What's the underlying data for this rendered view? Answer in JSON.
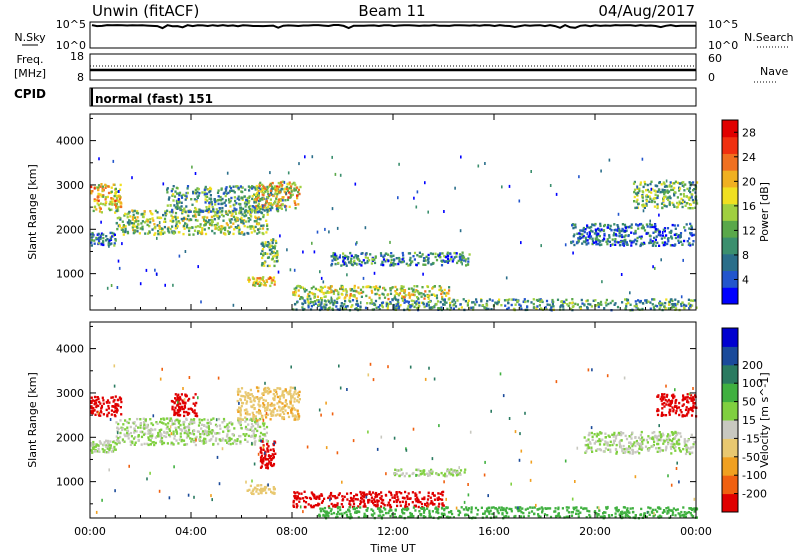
{
  "header": {
    "station_label": "Unwin (fitACF)",
    "beam_label": "Beam 11",
    "date_label": "04/Aug/2017"
  },
  "strips": {
    "nsky": {
      "label": "N.Sky",
      "right_label": "N.Search",
      "left_ticks": [
        "10^5",
        "10^0"
      ],
      "right_ticks": [
        "10^5",
        "10^0"
      ]
    },
    "freq": {
      "label_line1": "Freq.",
      "label_line2": "[MHz]",
      "right_label": "Nave",
      "left_ticks": [
        "18",
        "8"
      ],
      "right_ticks": [
        "60",
        "0"
      ]
    },
    "cpid": {
      "label": "CPID",
      "mode_text": "normal (fast) 151"
    }
  },
  "colors": {
    "power_scale": [
      "#0000ff",
      "#2255cc",
      "#2a6e8a",
      "#3b8f6e",
      "#5aa84a",
      "#a0d040",
      "#f0e020",
      "#f0b020",
      "#f07020",
      "#f03010",
      "#e00000"
    ],
    "velocity_scale": [
      "#e00000",
      "#f06010",
      "#f0a020",
      "#e8c870",
      "#c8c8c0",
      "#80d040",
      "#40b040",
      "#2a7a60",
      "#1a4a9a",
      "#0000d0"
    ]
  },
  "chart_data": [
    {
      "type": "heatmap",
      "name_hint": "power",
      "x_ticks": [
        "00:00",
        "04:00",
        "08:00",
        "12:00",
        "16:00",
        "20:00",
        "00:00"
      ],
      "x_range_hours": [
        0,
        24
      ],
      "y_ticks": [
        1000,
        2000,
        3000,
        4000
      ],
      "y_range": [
        180,
        4600
      ],
      "ylabel": "Slant Range [km]",
      "colorbar_label": "Power [dB]",
      "colorbar_ticks": [
        4,
        8,
        12,
        16,
        20,
        24,
        28
      ],
      "colorbar_range": [
        0,
        30
      ],
      "echo_regions": [
        {
          "t0": 0.0,
          "t1": 1.2,
          "r0": 2400,
          "r1": 3050,
          "v": 18
        },
        {
          "t0": 0.0,
          "t1": 1.0,
          "r0": 1650,
          "r1": 1950,
          "v": 8
        },
        {
          "t0": 1.0,
          "t1": 7.0,
          "r0": 1900,
          "r1": 2450,
          "v": 14
        },
        {
          "t0": 3.0,
          "t1": 7.6,
          "r0": 2400,
          "r1": 3000,
          "v": 10
        },
        {
          "t0": 6.5,
          "t1": 8.3,
          "r0": 2500,
          "r1": 3100,
          "v": 18
        },
        {
          "t0": 6.7,
          "t1": 7.4,
          "r0": 1200,
          "r1": 1800,
          "v": 12
        },
        {
          "t0": 6.2,
          "t1": 7.3,
          "r0": 750,
          "r1": 950,
          "v": 18
        },
        {
          "t0": 8.0,
          "t1": 14.2,
          "r0": 450,
          "r1": 750,
          "v": 16
        },
        {
          "t0": 9.5,
          "t1": 15.0,
          "r0": 1200,
          "r1": 1500,
          "v": 8
        },
        {
          "t0": 8.0,
          "t1": 24.0,
          "r0": 200,
          "r1": 450,
          "v": 10
        },
        {
          "t0": 19.0,
          "t1": 23.9,
          "r0": 1650,
          "r1": 2150,
          "v": 6
        },
        {
          "t0": 21.5,
          "t1": 24.0,
          "r0": 2500,
          "r1": 3100,
          "v": 12
        }
      ]
    },
    {
      "type": "heatmap",
      "name_hint": "velocity",
      "x_ticks": [
        "00:00",
        "04:00",
        "08:00",
        "12:00",
        "16:00",
        "20:00",
        "00:00"
      ],
      "x_range_hours": [
        0,
        24
      ],
      "xlabel": "Time UT",
      "y_ticks": [
        1000,
        2000,
        3000,
        4000
      ],
      "y_range": [
        180,
        4600
      ],
      "ylabel": "Slant Range [km]",
      "colorbar_label": "Velocity [m s^-1]",
      "colorbar_ticks": [
        -200,
        -100,
        -50,
        -15,
        15,
        50,
        100,
        200
      ],
      "echo_regions": [
        {
          "t0": 0.0,
          "t1": 1.2,
          "r0": 2500,
          "r1": 2950,
          "v": -250
        },
        {
          "t0": 0.0,
          "t1": 1.0,
          "r0": 1650,
          "r1": 1950,
          "v": 0
        },
        {
          "t0": 1.0,
          "t1": 7.0,
          "r0": 1850,
          "r1": 2450,
          "v": 0
        },
        {
          "t0": 3.2,
          "t1": 4.2,
          "r0": 2500,
          "r1": 3000,
          "v": -250
        },
        {
          "t0": 5.8,
          "t1": 8.3,
          "r0": 2400,
          "r1": 3150,
          "v": -40
        },
        {
          "t0": 6.7,
          "t1": 7.3,
          "r0": 1300,
          "r1": 1950,
          "v": -250
        },
        {
          "t0": 6.2,
          "t1": 7.3,
          "r0": 750,
          "r1": 950,
          "v": -30
        },
        {
          "t0": 8.0,
          "t1": 14.0,
          "r0": 450,
          "r1": 800,
          "v": -250
        },
        {
          "t0": 12.0,
          "t1": 15.0,
          "r0": 1150,
          "r1": 1300,
          "v": 0
        },
        {
          "t0": 9.0,
          "t1": 24.0,
          "r0": 200,
          "r1": 450,
          "v": 30
        },
        {
          "t0": 19.5,
          "t1": 23.9,
          "r0": 1650,
          "r1": 2150,
          "v": 0
        },
        {
          "t0": 22.4,
          "t1": 24.0,
          "r0": 2500,
          "r1": 3000,
          "v": -250
        }
      ]
    }
  ]
}
